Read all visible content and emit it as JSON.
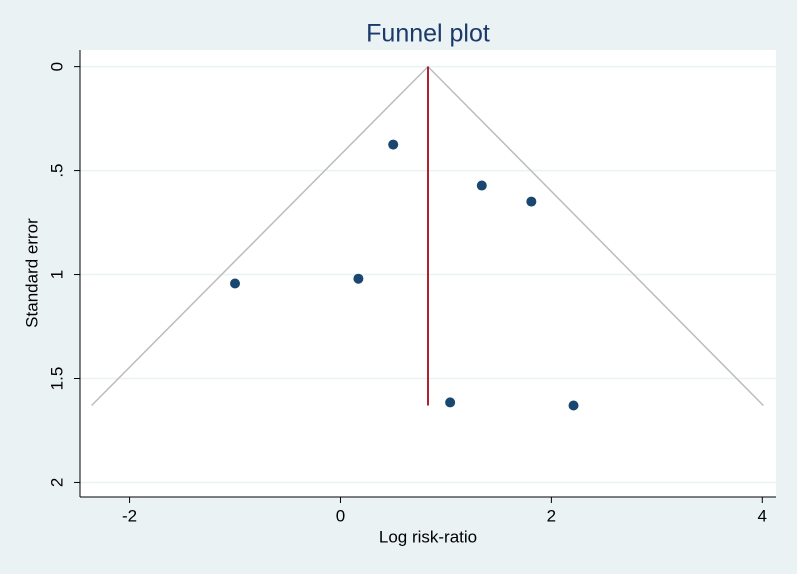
{
  "chart_data": {
    "type": "scatter",
    "title": "Funnel plot",
    "x_label": "Log risk-ratio",
    "y_label": "Standard error",
    "x": [
      -1.0,
      0.17,
      0.5,
      1.34,
      1.81,
      1.04,
      2.21
    ],
    "values": [
      1.043,
      1.02,
      0.375,
      0.572,
      0.649,
      1.615,
      1.63
    ],
    "color": "#1a476f",
    "funnel_x": [
      -2.36,
      0.83,
      4.01
    ],
    "funnel_y": [
      1.63,
      0,
      1.63
    ],
    "funnel_color": "#bcbcbc",
    "reference_x": [
      0.83,
      0.83
    ],
    "reference_y": [
      0,
      1.63
    ],
    "reference_color": "#b0202e",
    "xlim": [
      -2.47,
      4.13
    ],
    "ylim": [
      -0.08,
      2.07
    ],
    "y_reversed": true,
    "xticks": [
      -2,
      0,
      2,
      4
    ],
    "yticks": [
      0,
      {
        "value": 0.5,
        "label": ".5"
      },
      1,
      {
        "value": 1.5,
        "label": "1.5"
      },
      2
    ],
    "grid": true
  }
}
